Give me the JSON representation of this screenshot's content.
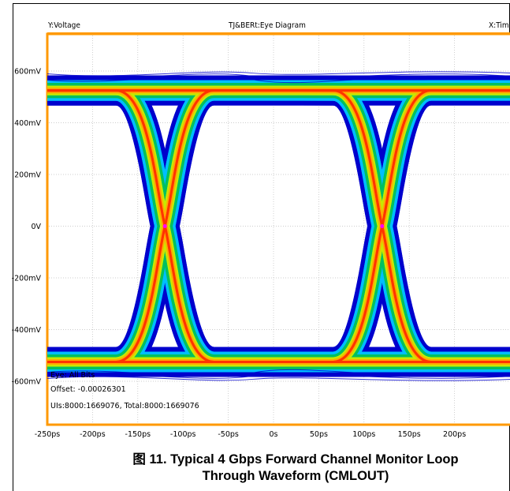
{
  "chart_data": {
    "type": "scatter",
    "subtype": "eye-diagram",
    "header": {
      "y_label": "Y:Voltage",
      "title": "TJ&BERt:Eye Diagram",
      "x_label": "X:Time"
    },
    "x_ticks": [
      "-250ps",
      "-200ps",
      "-150ps",
      "-100ps",
      "-50ps",
      "0s",
      "50ps",
      "100ps",
      "150ps",
      "200ps"
    ],
    "y_ticks": [
      "600mV",
      "400mV",
      "200mV",
      "0V",
      "-200mV",
      "-400mV",
      "-600mV"
    ],
    "xlim_ps": [
      -250,
      250
    ],
    "ylim_mV": [
      -700,
      700
    ],
    "levels_mV": {
      "high": 525,
      "low": -525
    },
    "crossings_ps": [
      -120,
      120
    ],
    "unit_interval_ps": 250,
    "info": {
      "line1": "Eye: All Bits",
      "line2": "Offset: -0.00026301",
      "line3": "UIs:8000:1669076, Total:8000:1669076"
    },
    "colors": {
      "frame": "#ff9900",
      "density_low": "#0000cc",
      "density_mid1": "#00bfff",
      "density_mid2": "#00c060",
      "density_mid3": "#c8e800",
      "density_mid4": "#ffaa00",
      "density_high": "#ff3300",
      "crossing_marker": "#ff00ff",
      "grid": "#bdbdbd"
    }
  },
  "caption": {
    "line1": "图 11. Typical 4 Gbps Forward Channel Monitor Loop",
    "line2": "Through Waveform (CMLOUT)"
  }
}
